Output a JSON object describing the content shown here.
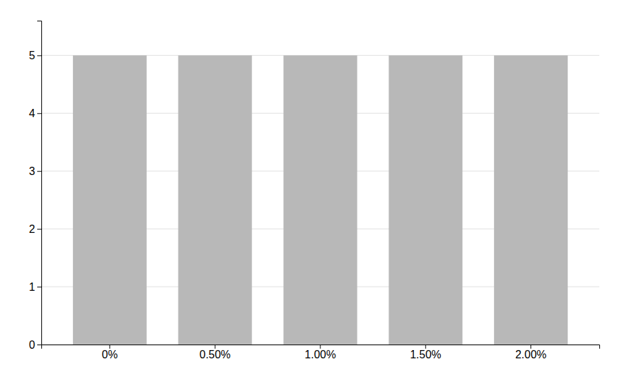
{
  "chart_data": {
    "type": "bar",
    "categories": [
      "0%",
      "0.50%",
      "1.00%",
      "1.50%",
      "2.00%"
    ],
    "values": [
      5,
      5,
      5,
      5,
      5
    ],
    "color": "#b8b8b8",
    "ylim": [
      0,
      5.6
    ],
    "yticks": [
      0,
      1,
      2,
      3,
      4,
      5
    ],
    "grid": true
  }
}
